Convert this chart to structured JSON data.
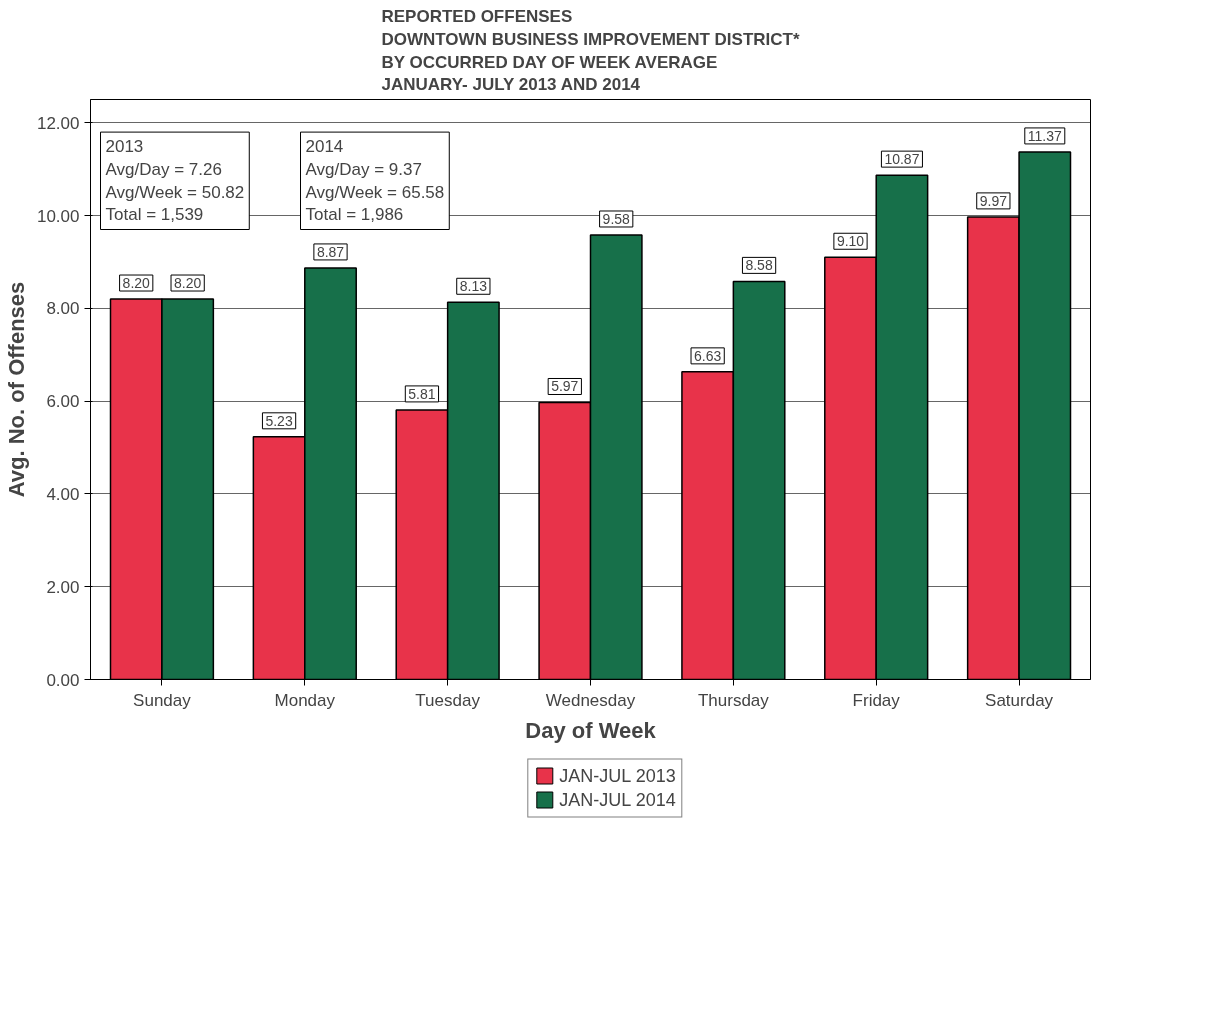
{
  "chart_data": {
    "type": "bar",
    "title": "REPORTED OFFENSES\nDOWNTOWN BUSINESS IMPROVEMENT DISTRICT*\nBY OCCURRED DAY OF WEEK AVERAGE\nJANUARY- JULY 2013 AND 2014",
    "xlabel": "Day of Week",
    "ylabel": "Avg. No. of Offenses",
    "categories": [
      "Sunday",
      "Monday",
      "Tuesday",
      "Wednesday",
      "Thursday",
      "Friday",
      "Saturday"
    ],
    "series": [
      {
        "name": "JAN-JUL 2013",
        "color": "#e8334a",
        "values": [
          8.2,
          5.23,
          5.81,
          5.97,
          6.63,
          9.1,
          9.97
        ],
        "value_labels": [
          "8.20",
          "5.23",
          "5.81",
          "5.97",
          "6.63",
          "9.10",
          "9.97"
        ]
      },
      {
        "name": "JAN-JUL 2014",
        "color": "#17704a",
        "values": [
          8.2,
          8.87,
          8.13,
          9.58,
          8.58,
          10.87,
          11.37
        ],
        "value_labels": [
          "8.20",
          "8.87",
          "8.13",
          "9.58",
          "8.58",
          "10.87",
          "11.37"
        ]
      }
    ],
    "ylim": [
      0,
      12.5
    ],
    "yticks": [
      {
        "value": 0,
        "label": "0.00"
      },
      {
        "value": 2,
        "label": "2.00"
      },
      {
        "value": 4,
        "label": "4.00"
      },
      {
        "value": 6,
        "label": "6.00"
      },
      {
        "value": 8,
        "label": "8.00"
      },
      {
        "value": 10,
        "label": "10.00"
      },
      {
        "value": 12,
        "label": "12.00"
      }
    ],
    "grid": "y",
    "legend": "bottom",
    "annotations": [
      "2013\nAvg/Day = 7.26\nAvg/Week = 50.82\nTotal = 1,539",
      "2014\nAvg/Day = 9.37\nAvg/Week = 65.58\nTotal = 1,986"
    ]
  }
}
